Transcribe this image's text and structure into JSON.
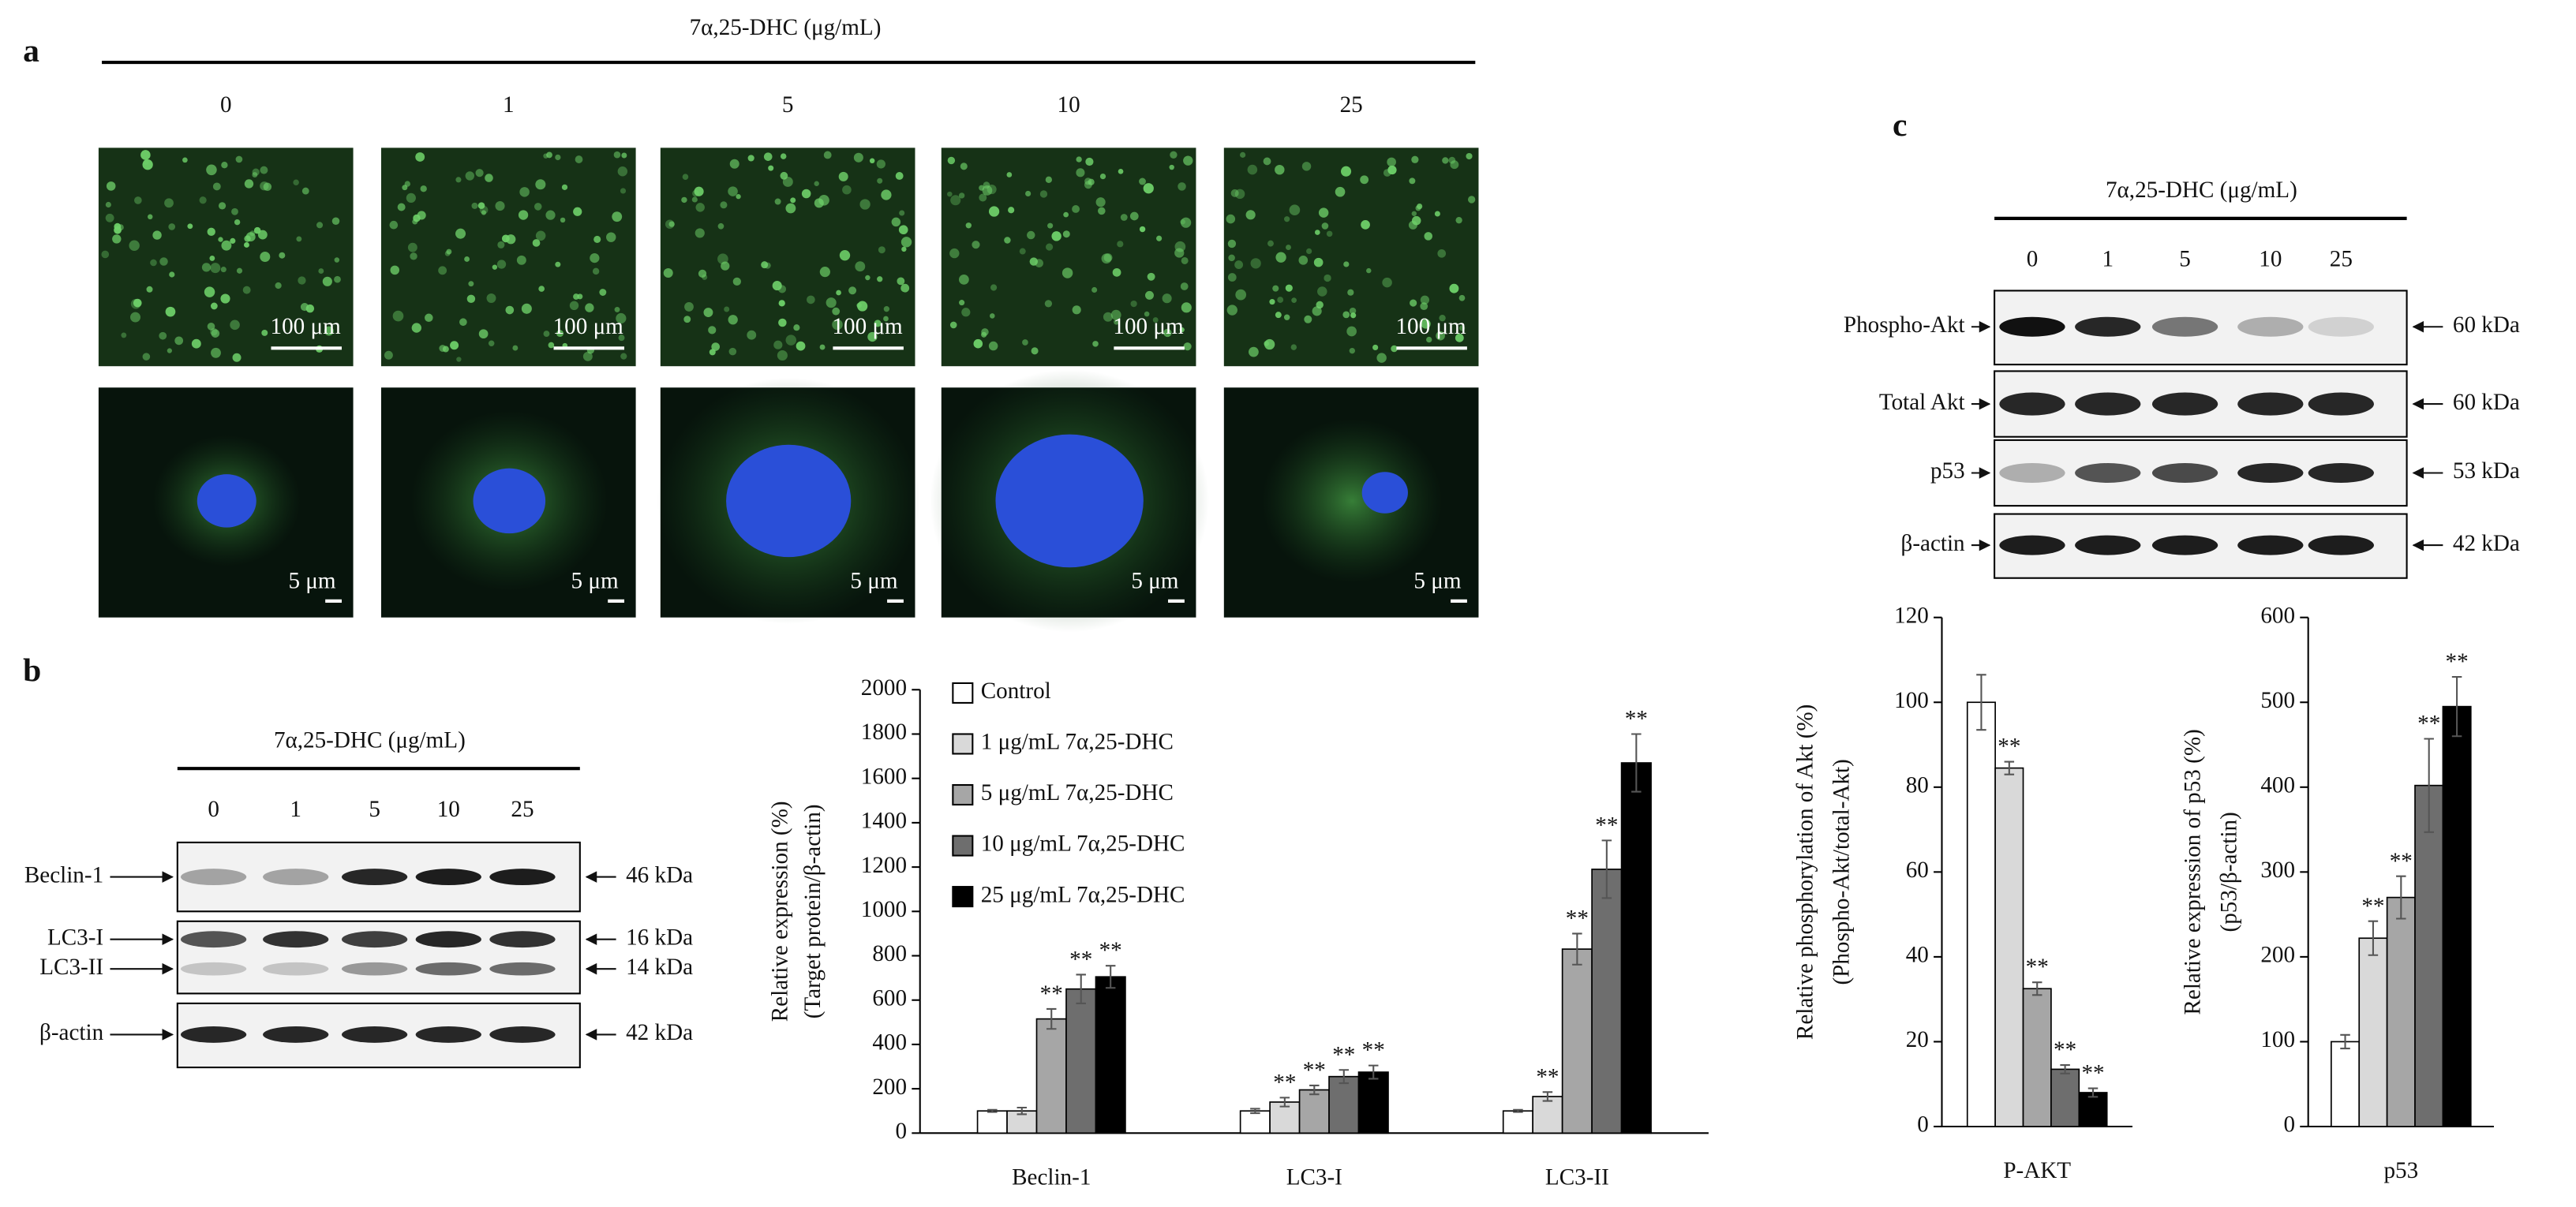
{
  "panel_a": {
    "label": "a",
    "treatment": "7α,25-DHC (μg/mL)",
    "doses": [
      "0",
      "1",
      "5",
      "10",
      "25"
    ],
    "scale_bar_top": "100 μm",
    "scale_bar_bottom": "5 μm"
  },
  "panel_b": {
    "label": "b",
    "treatment": "7α,25-DHC (μg/mL)",
    "doses": [
      "0",
      "1",
      "5",
      "10",
      "25"
    ],
    "rows": [
      {
        "name": "Beclin-1",
        "kda": "46 kDa"
      },
      {
        "name": "LC3-I",
        "kda": "16 kDa"
      },
      {
        "name": "LC3-II",
        "kda": "14 kDa"
      },
      {
        "name": "β-actin",
        "kda": "42 kDa"
      }
    ]
  },
  "panel_c": {
    "label": "c",
    "treatment": "7α,25-DHC (μg/mL)",
    "doses": [
      "0",
      "1",
      "5",
      "10",
      "25"
    ],
    "rows": [
      {
        "name": "Phospho-Akt",
        "kda": "60 kDa"
      },
      {
        "name": "Total Akt",
        "kda": "60 kDa"
      },
      {
        "name": "p53",
        "kda": "53 kDa"
      },
      {
        "name": "β-actin",
        "kda": "42 kDa"
      }
    ]
  },
  "chart_data": [
    {
      "type": "bar",
      "ylabel": [
        "Relative expression (%)",
        "(Target protein/β-actin)"
      ],
      "categories": [
        "Beclin-1",
        "LC3-I",
        "LC3-II"
      ],
      "ylim": [
        0,
        2000
      ],
      "yticks": [
        0,
        200,
        400,
        600,
        800,
        1000,
        1200,
        1400,
        1600,
        1800,
        2000
      ],
      "legend": "top-left",
      "series": [
        {
          "name": "Control",
          "color": "#ffffff",
          "values": [
            100,
            100,
            100
          ],
          "errors": [
            5,
            10,
            5
          ],
          "significance": [
            null,
            null,
            null
          ]
        },
        {
          "name": "1 μg/mL 7α,25-DHC",
          "color": "#d9d9d9",
          "values": [
            100,
            140,
            165
          ],
          "errors": [
            15,
            20,
            20
          ],
          "significance": [
            null,
            "**",
            "**"
          ]
        },
        {
          "name": "5 μg/mL 7α,25-DHC",
          "color": "#a6a6a6",
          "values": [
            515,
            195,
            830
          ],
          "errors": [
            45,
            20,
            70
          ],
          "significance": [
            "**",
            "**",
            "**"
          ]
        },
        {
          "name": "10 μg/mL 7α,25-DHC",
          "color": "#6e6e6e",
          "values": [
            650,
            255,
            1190
          ],
          "errors": [
            65,
            30,
            130
          ],
          "significance": [
            "**",
            "**",
            "**"
          ]
        },
        {
          "name": "25 μg/mL 7α,25-DHC",
          "color": "#000000",
          "values": [
            705,
            275,
            1670
          ],
          "errors": [
            50,
            30,
            130
          ],
          "significance": [
            "**",
            "**",
            "**"
          ]
        }
      ]
    },
    {
      "type": "bar",
      "ylabel": [
        "Relative phosphorylation of Akt (%)",
        "(Phospho-Akt/total-Akt)"
      ],
      "categories": [
        "P-AKT"
      ],
      "ylim": [
        0,
        120
      ],
      "yticks": [
        0,
        20,
        40,
        60,
        80,
        100,
        120
      ],
      "series": [
        {
          "color": "#ffffff",
          "values": [
            100
          ],
          "errors": [
            6.5
          ],
          "significance": [
            null
          ]
        },
        {
          "color": "#d9d9d9",
          "values": [
            84.5
          ],
          "errors": [
            1.5
          ],
          "significance": [
            "**"
          ]
        },
        {
          "color": "#a6a6a6",
          "values": [
            32.5
          ],
          "errors": [
            1.5
          ],
          "significance": [
            "**"
          ]
        },
        {
          "color": "#6e6e6e",
          "values": [
            13.5
          ],
          "errors": [
            1
          ],
          "significance": [
            "**"
          ]
        },
        {
          "color": "#000000",
          "values": [
            8
          ],
          "errors": [
            1
          ],
          "significance": [
            "**"
          ]
        }
      ]
    },
    {
      "type": "bar",
      "ylabel": [
        "Relative expression of p53 (%)",
        "(p53/β-actin)"
      ],
      "categories": [
        "p53"
      ],
      "ylim": [
        0,
        600
      ],
      "yticks": [
        0,
        100,
        200,
        300,
        400,
        500,
        600
      ],
      "series": [
        {
          "color": "#ffffff",
          "values": [
            100
          ],
          "errors": [
            8
          ],
          "significance": [
            null
          ]
        },
        {
          "color": "#d9d9d9",
          "values": [
            222
          ],
          "errors": [
            20
          ],
          "significance": [
            "**"
          ]
        },
        {
          "color": "#a6a6a6",
          "values": [
            270
          ],
          "errors": [
            25
          ],
          "significance": [
            "**"
          ]
        },
        {
          "color": "#6e6e6e",
          "values": [
            402
          ],
          "errors": [
            55
          ],
          "significance": [
            "**"
          ]
        },
        {
          "color": "#000000",
          "values": [
            495
          ],
          "errors": [
            35
          ],
          "significance": [
            "**"
          ]
        }
      ]
    }
  ]
}
